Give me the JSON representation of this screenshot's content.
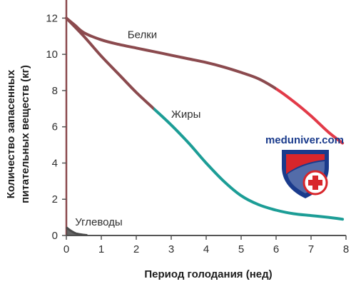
{
  "chart_data": {
    "type": "line",
    "title": "",
    "xlabel": "Период голодания (нед)",
    "ylabel_lines": [
      "Количество запасенных",
      "питательных веществ (кг)"
    ],
    "xlim": [
      0,
      8
    ],
    "ylim": [
      0,
      13
    ],
    "x_ticks": [
      0,
      1,
      2,
      3,
      4,
      5,
      6,
      7,
      8
    ],
    "y_ticks": [
      0,
      2,
      4,
      6,
      8,
      10,
      12
    ],
    "grid": false,
    "series": [
      {
        "name": "Белки",
        "color": "#8b4a4e",
        "accent_color": "#e23a48",
        "accent_from_x": 6,
        "x": [
          0,
          0.25,
          0.5,
          1,
          1.5,
          2,
          2.5,
          3,
          3.5,
          4,
          4.5,
          5,
          5.5,
          6,
          6.5,
          7,
          7.5,
          7.9
        ],
        "y": [
          12,
          11.6,
          11.2,
          10.8,
          10.55,
          10.35,
          10.15,
          9.95,
          9.75,
          9.55,
          9.3,
          9.0,
          8.65,
          8.1,
          7.4,
          6.6,
          5.7,
          5.1
        ]
      },
      {
        "name": "Жиры",
        "color": "#8b4a4e",
        "accent_color": "#1c9d96",
        "accent_from_x": 2.5,
        "x": [
          0,
          0.5,
          1,
          1.5,
          2,
          2.5,
          3,
          3.5,
          4,
          4.5,
          5,
          5.5,
          6,
          6.5,
          7,
          7.5,
          7.9
        ],
        "y": [
          12,
          11.0,
          9.9,
          8.9,
          7.9,
          7.0,
          6.1,
          5.1,
          4.0,
          3.0,
          2.2,
          1.7,
          1.4,
          1.2,
          1.1,
          1.0,
          0.9
        ]
      },
      {
        "name": "Углеводы",
        "color": "#4a4a4a",
        "x": [
          0,
          0.1,
          0.2,
          0.3,
          0.45,
          0.6
        ],
        "y": [
          0.45,
          0.3,
          0.18,
          0.1,
          0.05,
          0.02
        ]
      }
    ]
  },
  "watermark": {
    "text": "meduniver.com",
    "text_color": "#1a3b8c",
    "shield_color": "#1a3b8c",
    "shield_stripe_color": "#d8262b",
    "cross_color": "#d8262b"
  }
}
